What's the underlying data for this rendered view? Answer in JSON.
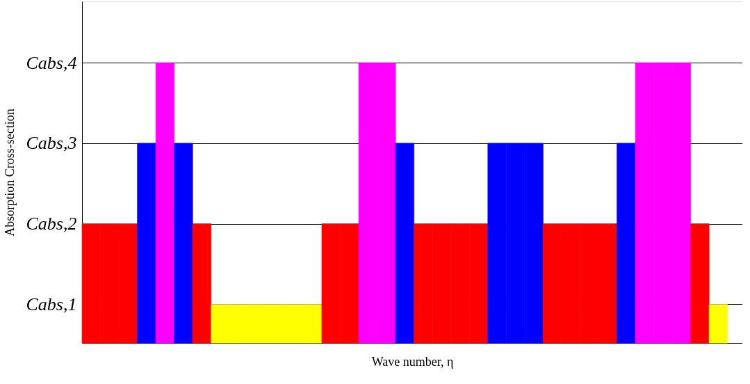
{
  "chart_data": {
    "type": "bar",
    "xlabel": "Wave number, η",
    "ylabel": "Absorption Cross-section",
    "categories": [
      null,
      null,
      null,
      null,
      null,
      null,
      null,
      null,
      null,
      null,
      null,
      null,
      null,
      null,
      null,
      null,
      null,
      null,
      null,
      null,
      null,
      null,
      null,
      null,
      null,
      null,
      null,
      null,
      null,
      null,
      null,
      null,
      null,
      null,
      null
    ],
    "values": [
      2,
      2,
      2,
      3,
      4,
      3,
      2,
      1,
      1,
      1,
      1,
      1,
      1,
      2,
      2,
      4,
      4,
      3,
      2,
      2,
      2,
      2,
      3,
      3,
      3,
      2,
      2,
      2,
      2,
      3,
      4,
      4,
      4,
      2,
      1
    ],
    "colors": [
      "#ff0000",
      "#ff0000",
      "#ff0000",
      "#0000ff",
      "#ff00ff",
      "#0000ff",
      "#ff0000",
      "#ffff00",
      "#ffff00",
      "#ffff00",
      "#ffff00",
      "#ffff00",
      "#ffff00",
      "#ff0000",
      "#ff0000",
      "#ff00ff",
      "#ff00ff",
      "#0000ff",
      "#ff0000",
      "#ff0000",
      "#ff0000",
      "#ff0000",
      "#0000ff",
      "#0000ff",
      "#0000ff",
      "#ff0000",
      "#ff0000",
      "#ff0000",
      "#ff0000",
      "#0000ff",
      "#ff00ff",
      "#ff00ff",
      "#ff00ff",
      "#ff0000",
      "#ffff00"
    ],
    "ylim": [
      0.52,
      4.76
    ],
    "yticks": [
      {
        "value": 1,
        "label": "Cabs,1"
      },
      {
        "value": 2,
        "label": "Cabs,2"
      },
      {
        "value": 3,
        "label": "Cabs,3"
      },
      {
        "value": 4,
        "label": "Cabs,4"
      }
    ],
    "grid": "y",
    "legend": false
  }
}
